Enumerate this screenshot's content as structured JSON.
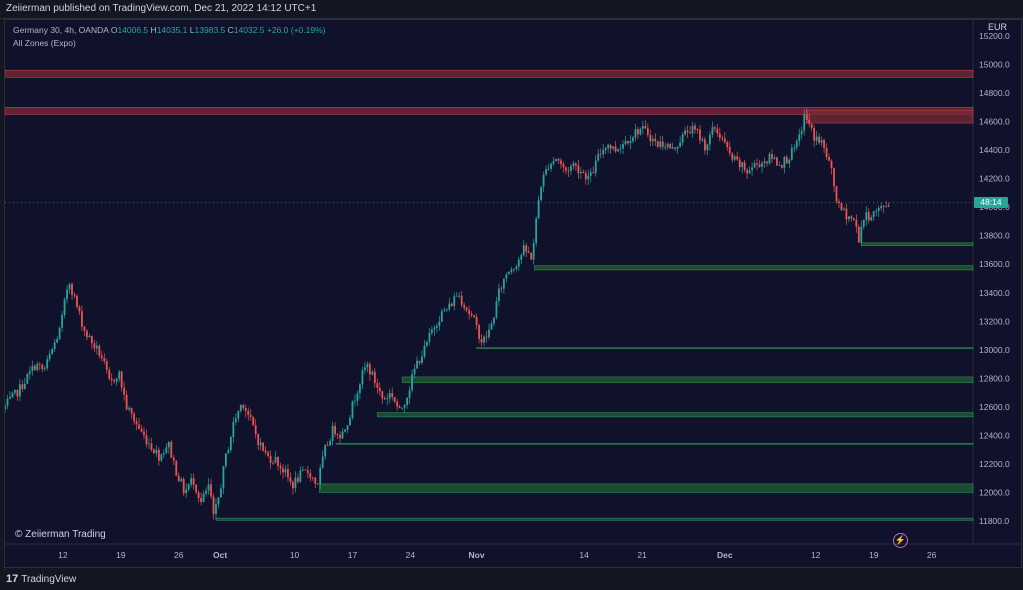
{
  "header": {
    "published_line": "Zeiierman published on TradingView.com, Dec 21, 2022 14:12 UTC+1"
  },
  "legend": {
    "symbol": "Germany 30, 4h, OANDA",
    "o_label": "O",
    "o_value": "14006.5",
    "h_label": "H",
    "h_value": "14035.1",
    "l_label": "L",
    "l_value": "13983.5",
    "c_label": "C",
    "c_value": "14032.5",
    "change": "+26.0 (+0.19%)",
    "indicator": "All Zones (Expo)"
  },
  "currency": "EUR",
  "price_tag": "48:14",
  "copyright": "© Zeiierman Trading",
  "footer": {
    "logo_mark": "17",
    "logo_text": "TradingView"
  },
  "colors": {
    "background": "#10122b",
    "up": "#26a69a",
    "down": "#ef5350",
    "supply_zone": "#7a2a35",
    "demand_zone": "#1f5a32",
    "axis_text": "#b2b5be"
  },
  "chart_data": {
    "type": "candlestick",
    "title": "Germany 30, 4h, OANDA",
    "ylim": [
      11700,
      15300
    ],
    "y_ticks": [
      11800,
      12000,
      12200,
      12400,
      12600,
      12800,
      13000,
      13200,
      13400,
      13600,
      13800,
      14000,
      14200,
      14400,
      14600,
      14800,
      15000,
      15200
    ],
    "y_tick_labels": [
      "11800.0",
      "12000.0",
      "12200.0",
      "12400.0",
      "12600.0",
      "12800.0",
      "13000.0",
      "13200.0",
      "13400.0",
      "13600.0",
      "13800.0",
      "14000.0",
      "14200.0",
      "14400.0",
      "14600.0",
      "14800.0",
      "15000.0",
      "15200.0"
    ],
    "x_ticks": [
      {
        "label": "12",
        "day": 12
      },
      {
        "label": "19",
        "day": 19
      },
      {
        "label": "26",
        "day": 26
      },
      {
        "label": "Oct",
        "day": 31
      },
      {
        "label": "10",
        "day": 40
      },
      {
        "label": "17",
        "day": 47
      },
      {
        "label": "24",
        "day": 54
      },
      {
        "label": "Nov",
        "day": 62
      },
      {
        "label": "14",
        "day": 75
      },
      {
        "label": "21",
        "day": 82
      },
      {
        "label": "Dec",
        "day": 92
      },
      {
        "label": "12",
        "day": 103
      },
      {
        "label": "19",
        "day": 110
      },
      {
        "label": "26",
        "day": 117
      }
    ],
    "xlim": [
      5,
      122
    ],
    "path": [
      [
        5,
        12580
      ],
      [
        7,
        12720
      ],
      [
        9,
        12900
      ],
      [
        10,
        12850
      ],
      [
        12,
        13150
      ],
      [
        13,
        13500
      ],
      [
        14,
        13300
      ],
      [
        15,
        13120
      ],
      [
        17,
        12950
      ],
      [
        18,
        12750
      ],
      [
        19,
        12850
      ],
      [
        20,
        12600
      ],
      [
        22,
        12400
      ],
      [
        24,
        12250
      ],
      [
        25,
        12350
      ],
      [
        26,
        12150
      ],
      [
        27,
        12000
      ],
      [
        28,
        12100
      ],
      [
        29,
        11930
      ],
      [
        30,
        12050
      ],
      [
        30.5,
        11820
      ],
      [
        31,
        11930
      ],
      [
        32,
        12250
      ],
      [
        33,
        12500
      ],
      [
        34,
        12640
      ],
      [
        35,
        12500
      ],
      [
        36,
        12350
      ],
      [
        37,
        12250
      ],
      [
        38,
        12230
      ],
      [
        39,
        12150
      ],
      [
        40,
        12050
      ],
      [
        41,
        12120
      ],
      [
        42,
        12150
      ],
      [
        43,
        12050
      ],
      [
        44,
        12300
      ],
      [
        45,
        12450
      ],
      [
        46,
        12400
      ],
      [
        47,
        12550
      ],
      [
        48,
        12750
      ],
      [
        49,
        12900
      ],
      [
        50,
        12780
      ],
      [
        51,
        12650
      ],
      [
        52,
        12700
      ],
      [
        53,
        12560
      ],
      [
        54,
        12700
      ],
      [
        55,
        12900
      ],
      [
        56,
        13000
      ],
      [
        57,
        13150
      ],
      [
        58,
        13250
      ],
      [
        59,
        13300
      ],
      [
        60,
        13400
      ],
      [
        61,
        13300
      ],
      [
        62,
        13200
      ],
      [
        63,
        13050
      ],
      [
        64,
        13150
      ],
      [
        65,
        13400
      ],
      [
        66,
        13550
      ],
      [
        67,
        13600
      ],
      [
        68,
        13700
      ],
      [
        69,
        13650
      ],
      [
        70,
        14150
      ],
      [
        71,
        14300
      ],
      [
        72,
        14350
      ],
      [
        73,
        14250
      ],
      [
        74,
        14300
      ],
      [
        75,
        14250
      ],
      [
        76,
        14200
      ],
      [
        77,
        14350
      ],
      [
        78,
        14450
      ],
      [
        79,
        14400
      ],
      [
        80,
        14450
      ],
      [
        81,
        14500
      ],
      [
        82,
        14550
      ],
      [
        83,
        14520
      ],
      [
        84,
        14440
      ],
      [
        85,
        14450
      ],
      [
        86,
        14400
      ],
      [
        87,
        14480
      ],
      [
        88,
        14550
      ],
      [
        89,
        14520
      ],
      [
        90,
        14420
      ],
      [
        91,
        14560
      ],
      [
        92,
        14480
      ],
      [
        93,
        14350
      ],
      [
        94,
        14300
      ],
      [
        95,
        14250
      ],
      [
        96,
        14300
      ],
      [
        97,
        14320
      ],
      [
        98,
        14350
      ],
      [
        99,
        14300
      ],
      [
        100,
        14350
      ],
      [
        101,
        14430
      ],
      [
        102,
        14650
      ],
      [
        103,
        14500
      ],
      [
        104,
        14450
      ],
      [
        105,
        14300
      ],
      [
        106,
        14000
      ],
      [
        107,
        13950
      ],
      [
        108,
        13900
      ],
      [
        108.5,
        13780
      ],
      [
        109,
        13920
      ],
      [
        110,
        13950
      ],
      [
        111,
        13980
      ],
      [
        112,
        14030
      ]
    ],
    "zones": [
      {
        "kind": "supply",
        "top": 14960,
        "bottom": 14910,
        "x_start": 5,
        "x_end": 122
      },
      {
        "kind": "supply",
        "top": 14700,
        "bottom": 14650,
        "x_start": 5,
        "x_end": 122
      },
      {
        "kind": "supply",
        "top": 14680,
        "bottom": 14590,
        "x_start": 102,
        "x_end": 122
      },
      {
        "kind": "demand",
        "top": 13750,
        "bottom": 13730,
        "x_start": 108.5,
        "x_end": 122
      },
      {
        "kind": "demand",
        "top": 13590,
        "bottom": 13560,
        "x_start": 69,
        "x_end": 122
      },
      {
        "kind": "demand",
        "top": 13015,
        "bottom": 13010,
        "x_start": 62,
        "x_end": 122
      },
      {
        "kind": "demand",
        "top": 12810,
        "bottom": 12770,
        "x_start": 53,
        "x_end": 122
      },
      {
        "kind": "demand",
        "top": 12560,
        "bottom": 12530,
        "x_start": 50,
        "x_end": 122
      },
      {
        "kind": "demand",
        "top": 12345,
        "bottom": 12340,
        "x_start": 45,
        "x_end": 122
      },
      {
        "kind": "demand",
        "top": 12060,
        "bottom": 12000,
        "x_start": 43,
        "x_end": 122
      },
      {
        "kind": "demand",
        "top": 11820,
        "bottom": 11805,
        "x_start": 30.5,
        "x_end": 122
      }
    ]
  }
}
